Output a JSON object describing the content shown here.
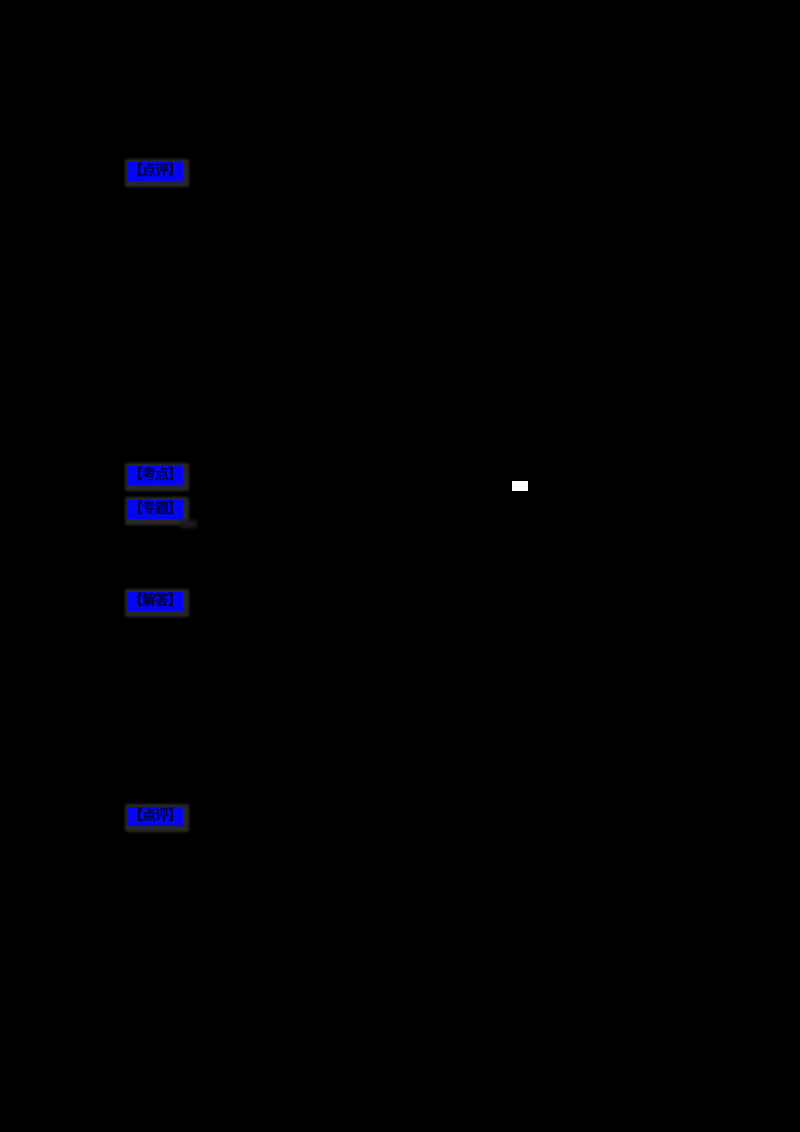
{
  "document": {
    "background_color": "#000000",
    "links": [
      {
        "label": "【点评】"
      },
      {
        "label": "【考点】"
      },
      {
        "label": "【专题】"
      },
      {
        "label": "【解答】"
      },
      {
        "label": "【点评】"
      }
    ],
    "white_mark": {
      "color": "#ffffff"
    }
  },
  "colors": {
    "bg": "#000000",
    "link-blue": "#0505f5",
    "glyph": "#000233",
    "glow": "#272727",
    "smudge": "#1b1b1b",
    "white-mark": "#ffffff"
  }
}
